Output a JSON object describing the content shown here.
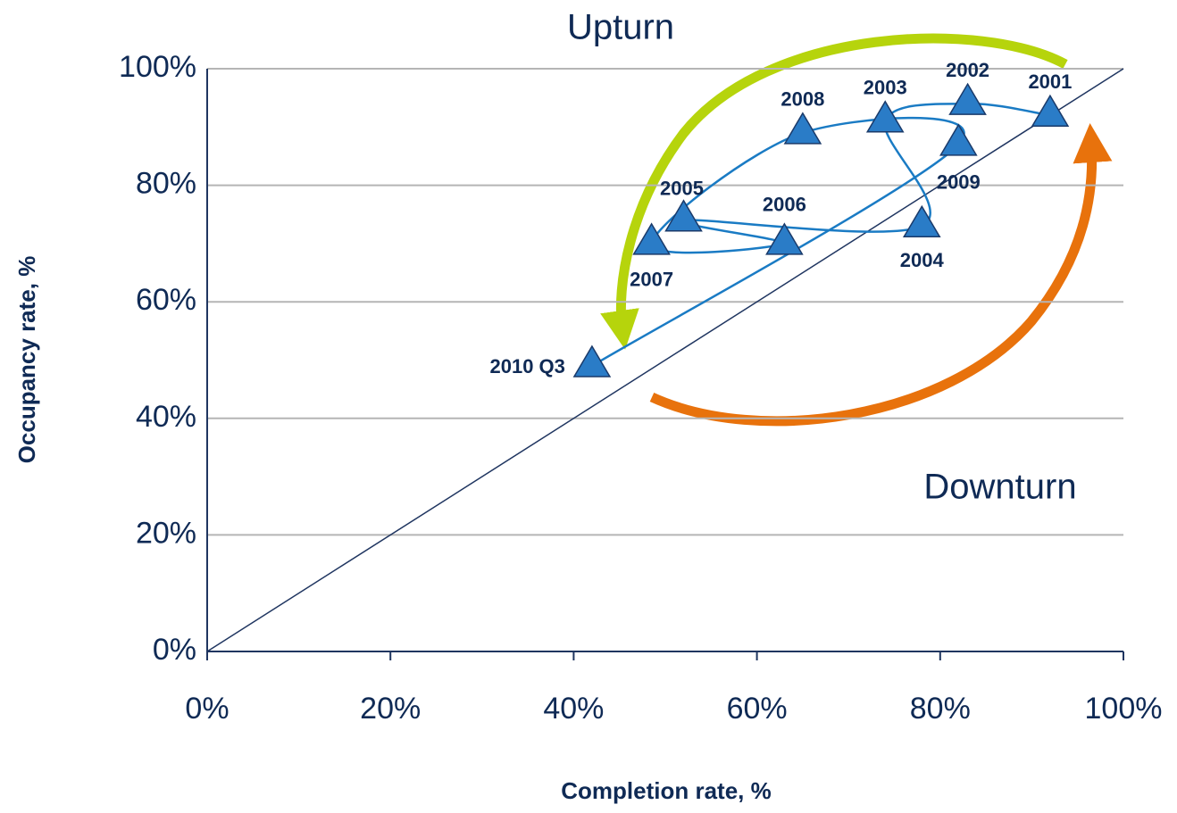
{
  "chart_data": {
    "type": "scatter",
    "annotations": [
      "Upturn",
      "Downturn"
    ],
    "x_label": "Completion rate, %",
    "y_label": "Occupancy rate, %",
    "labels": [
      "2001",
      "2002",
      "2003",
      "2004",
      "2005",
      "2006",
      "2007",
      "2008",
      "2009",
      "2010 Q3"
    ],
    "x": [
      92,
      83,
      74,
      78,
      52,
      63,
      48.5,
      65,
      82,
      42
    ],
    "y": [
      92,
      94,
      91,
      73,
      74,
      70,
      70,
      89,
      87,
      49
    ],
    "color": "#2a7cc7",
    "line_color": "#1a7bc4",
    "reference_line": {
      "x": [
        0,
        100
      ],
      "y": [
        0,
        100
      ],
      "color": "#1f3560"
    },
    "xlim": [
      0,
      100
    ],
    "ylim": [
      0,
      100
    ],
    "xticks": [
      {
        "value": 0,
        "label": "0%"
      },
      {
        "value": 20,
        "label": "20%"
      },
      {
        "value": 40,
        "label": "40%"
      },
      {
        "value": 60,
        "label": "60%"
      },
      {
        "value": 80,
        "label": "80%"
      },
      {
        "value": 100,
        "label": "100%"
      }
    ],
    "yticks": [
      {
        "value": 0,
        "label": "0%"
      },
      {
        "value": 20,
        "label": "20%"
      },
      {
        "value": 40,
        "label": "40%"
      },
      {
        "value": 60,
        "label": "60%"
      },
      {
        "value": 80,
        "label": "80%"
      },
      {
        "value": 100,
        "label": "100%"
      }
    ],
    "grid": true
  }
}
